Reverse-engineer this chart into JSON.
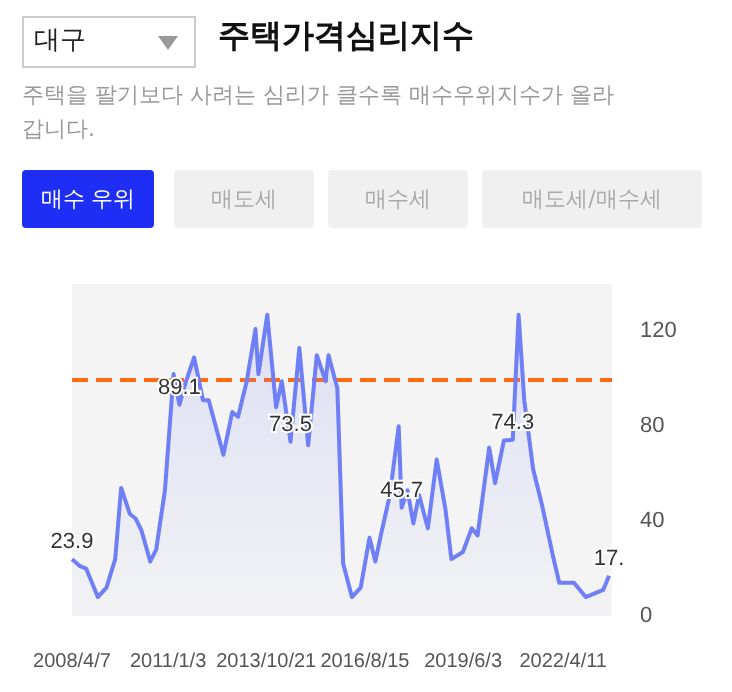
{
  "chart_data": {
    "type": "area",
    "title": "주택가격심리지수",
    "subtitle": "주택을 팔기보다 사려는 심리가 클수록 매수우위지수가 올라갑니다.",
    "annotations": [
      "대구",
      "매수 우위",
      "매도세",
      "매수세",
      "매도세/매수세"
    ],
    "x": [
      "2008-04-07",
      "2008-07",
      "2008-09",
      "2009-01",
      "2009-04",
      "2009-07",
      "2009-09",
      "2009-12",
      "2010-02",
      "2010-04",
      "2010-07",
      "2010-09",
      "2010-12",
      "2011-03",
      "2011-05",
      "2011-07",
      "2011-10",
      "2012-01",
      "2012-03",
      "2012-08",
      "2012-11",
      "2013-01",
      "2013-04",
      "2013-07",
      "2013-08",
      "2013-11",
      "2014-02",
      "2014-04",
      "2014-07",
      "2014-10",
      "2015-01",
      "2015-04",
      "2015-07",
      "2015-08",
      "2015-11",
      "2016-01",
      "2016-04",
      "2016-07",
      "2016-10",
      "2016-12",
      "2017-02",
      "2017-05",
      "2017-08",
      "2017-09",
      "2017-11",
      "2018-01",
      "2018-03",
      "2018-06",
      "2018-09",
      "2018-12",
      "2019-02",
      "2019-06",
      "2019-09",
      "2019-11",
      "2020-03",
      "2020-05",
      "2020-08",
      "2020-11",
      "2021-01",
      "2021-03",
      "2021-06",
      "2021-09",
      "2022-01",
      "2022-03",
      "2022-08",
      "2022-12",
      "2023-06",
      "2023-08"
    ],
    "series": [
      {
        "color": "#6f7ff5",
        "values": [
          23.9,
          21,
          20,
          8,
          12,
          24,
          54,
          43,
          41,
          36,
          23,
          28,
          53,
          102,
          89.1,
          98,
          109,
          91,
          91,
          68,
          86,
          84,
          99,
          121,
          102,
          127,
          88,
          99,
          73.5,
          113,
          72,
          110,
          99,
          110,
          96,
          22,
          8,
          12,
          33,
          23,
          35,
          51,
          80,
          45.7,
          53,
          39,
          51,
          37,
          66,
          45,
          24,
          27,
          37,
          34,
          71,
          56,
          74,
          74.3,
          127,
          91,
          62,
          47,
          24,
          14,
          14,
          8,
          11,
          17
        ],
        "value_labels": [
          "23.9",
          null,
          null,
          null,
          null,
          null,
          null,
          null,
          null,
          null,
          null,
          null,
          null,
          null,
          "89.1",
          null,
          null,
          null,
          null,
          null,
          null,
          null,
          null,
          null,
          null,
          null,
          null,
          null,
          "73.5",
          null,
          null,
          null,
          null,
          null,
          null,
          null,
          null,
          null,
          null,
          null,
          null,
          null,
          null,
          "45.7",
          null,
          null,
          null,
          null,
          null,
          null,
          null,
          null,
          null,
          null,
          null,
          null,
          null,
          "74.3",
          null,
          null,
          null,
          null,
          null,
          null,
          null,
          null,
          null,
          "17."
        ]
      }
    ],
    "xlim": [
      "2008-04-07",
      "2023-09"
    ],
    "xticks": [
      {
        "value": "2008-04-07",
        "label": "2008/4/7"
      },
      {
        "value": "2011-01-03",
        "label": "2011/1/3"
      },
      {
        "value": "2013-10-21",
        "label": "2013/10/21"
      },
      {
        "value": "2016-08-15",
        "label": "2016/8/15"
      },
      {
        "value": "2019-06-03",
        "label": "2019/6/3"
      },
      {
        "value": "2022-04-11",
        "label": "2022/4/11"
      }
    ],
    "ylim": [
      0,
      140
    ],
    "yticks": [
      0,
      40,
      80,
      120
    ],
    "ref_lines": [
      {
        "axis": "y",
        "value": 100,
        "color": "#ff6a13",
        "line_style": "dashed"
      }
    ],
    "grid": false,
    "marker": "none",
    "line_style": "solid"
  }
}
